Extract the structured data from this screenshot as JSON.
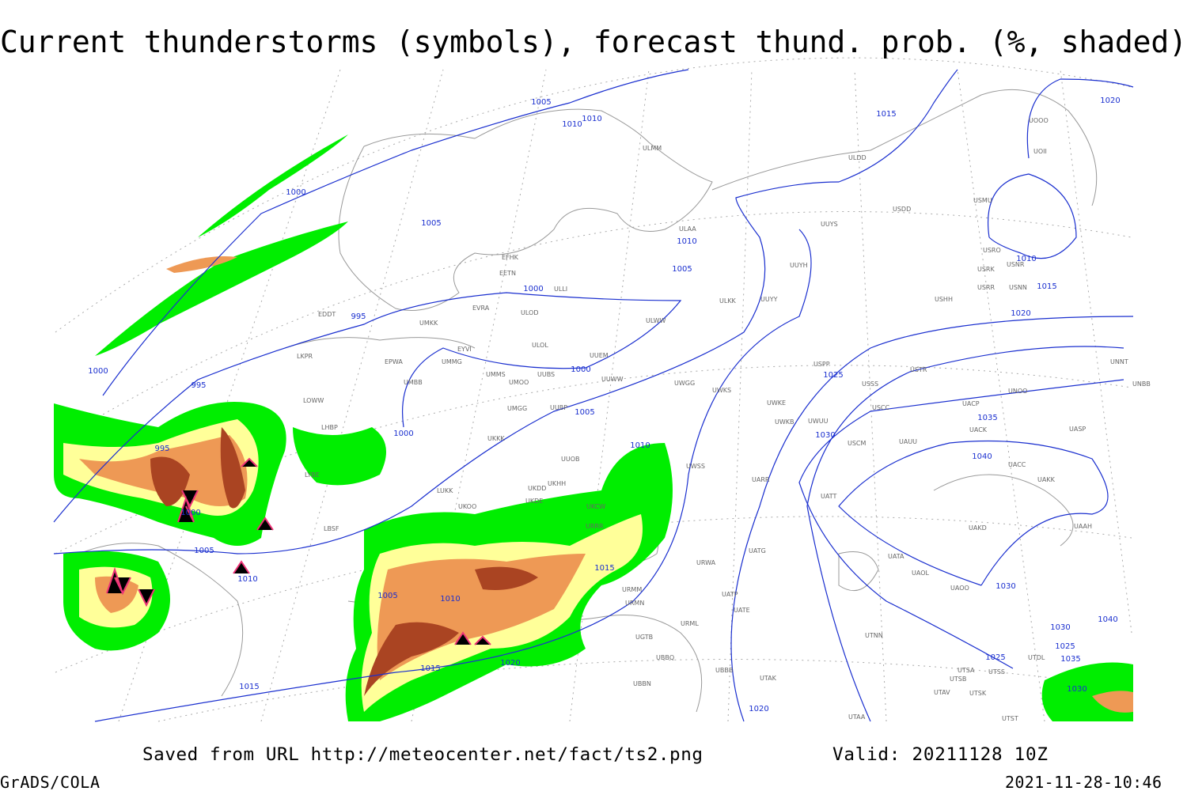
{
  "title": "Current thunderstorms (symbols), forecast thund. prob. (%, shaded)",
  "footer": {
    "source": "Saved from URL http://meteocenter.net/fact/ts2.png",
    "valid": "Valid: 20211128 10Z",
    "software": "GrADS/COLA",
    "timestamp": "2021-11-28-10:46"
  },
  "isobars": [
    1005,
    1010,
    1010,
    1000,
    1005,
    1010,
    1005,
    1000,
    995,
    1000,
    995,
    1000,
    1005,
    1000,
    995,
    1010,
    1000,
    1005,
    1010,
    1015,
    1005,
    1010,
    1020,
    1015,
    1015,
    1015,
    1020,
    1010,
    1015,
    1020,
    1025,
    1030,
    1035,
    1040,
    1030,
    1025,
    1020,
    1040,
    1030,
    1025,
    1035,
    1030
  ],
  "stations": [
    "ULMM",
    "ULDD",
    "USDD",
    "USMU",
    "UOII",
    "UOOO",
    "ULAA",
    "UUYS",
    "USRO",
    "USNR",
    "USRK",
    "USRR",
    "USNN",
    "EFHK",
    "EETN",
    "ULLI",
    "UUYH",
    "ULKK",
    "UUYY",
    "EVRA",
    "ULOD",
    "EYVI",
    "ULOL",
    "UUEM",
    "ULWW",
    "USHH",
    "UMKK",
    "EDDT",
    "EPWA",
    "UMMG",
    "UMMS",
    "UMOO",
    "UUBS",
    "UUWW",
    "UWGG",
    "UWKS",
    "USPP",
    "USTR",
    "USSS",
    "UNNT",
    "UNBB",
    "UNOO",
    "UMBB",
    "LKPR",
    "LOWW",
    "LHBP",
    "UMGG",
    "UUBP",
    "UWKE",
    "UWKB",
    "UWUU",
    "USCC",
    "UACP",
    "UACK",
    "UASP",
    "UKKK",
    "UUOB",
    "UWSS",
    "UATT",
    "UARR",
    "USCM",
    "UAUU",
    "UACC",
    "UAKK",
    "LYBE",
    "LUKK",
    "UKDD",
    "UKHH",
    "UKOO",
    "UKDE",
    "UKCW",
    "LBSF",
    "URRR",
    "UAKD",
    "UAAH",
    "UATG",
    "URWA",
    "UATA",
    "UAOL",
    "UAOO",
    "URMM",
    "URMN",
    "UATP",
    "UATE",
    "URML",
    "UTNN",
    "UGTB",
    "UBBQ",
    "UBBB",
    "UTAK",
    "UTSA",
    "UTSS",
    "UTSB",
    "UBBN",
    "UTAV",
    "UTSK",
    "UTAA",
    "UTST",
    "UTDL"
  ]
}
